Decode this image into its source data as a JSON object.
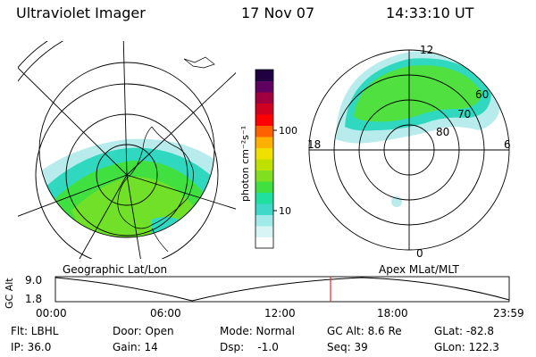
{
  "header": {
    "instrument": "Ultraviolet Imager",
    "date": "17 Nov 07",
    "time": "14:33:10 UT"
  },
  "left_panel": {
    "label": "Geographic Lat/Lon"
  },
  "right_panel": {
    "label": "Apex MLat/MLT",
    "mlt_labels": {
      "top": "12",
      "left": "18",
      "right": "6",
      "bottom": "0"
    },
    "lat_labels": [
      "60",
      "70",
      "80"
    ]
  },
  "colorbar": {
    "unit_label": "photon cm⁻²s⁻¹",
    "ticks": [
      "100",
      "10"
    ],
    "colors": [
      "#ffffff",
      "#d8f4f4",
      "#a0eaea",
      "#40d8c8",
      "#20e0a0",
      "#40e040",
      "#80e020",
      "#c0e000",
      "#f0e000",
      "#ffb000",
      "#ff6000",
      "#ff0000",
      "#d00020",
      "#a00040",
      "#600060",
      "#200040"
    ]
  },
  "alt_plot": {
    "ylabel": "GC Alt",
    "yticks": [
      "9.0",
      "1.8"
    ],
    "xticks": [
      "00:00",
      "06:00",
      "12:00",
      "18:00",
      "23:59"
    ]
  },
  "info": {
    "row1": [
      {
        "key": "filter",
        "text": "Flt: LBHL"
      },
      {
        "key": "door",
        "text": "Door: Open"
      },
      {
        "key": "mode",
        "text": "Mode: Normal"
      },
      {
        "key": "gc_alt",
        "text": "GC Alt: 8.6 Re"
      },
      {
        "key": "glat",
        "text": "GLat: -82.8"
      }
    ],
    "row2": [
      {
        "key": "ip",
        "text": "IP: 36.0"
      },
      {
        "key": "gain",
        "text": "Gain: 14"
      },
      {
        "key": "dsp",
        "text": "Dsp:    -1.0"
      },
      {
        "key": "seq",
        "text": "Seq: 39"
      },
      {
        "key": "glon",
        "text": "GLon: 122.3"
      }
    ]
  }
}
